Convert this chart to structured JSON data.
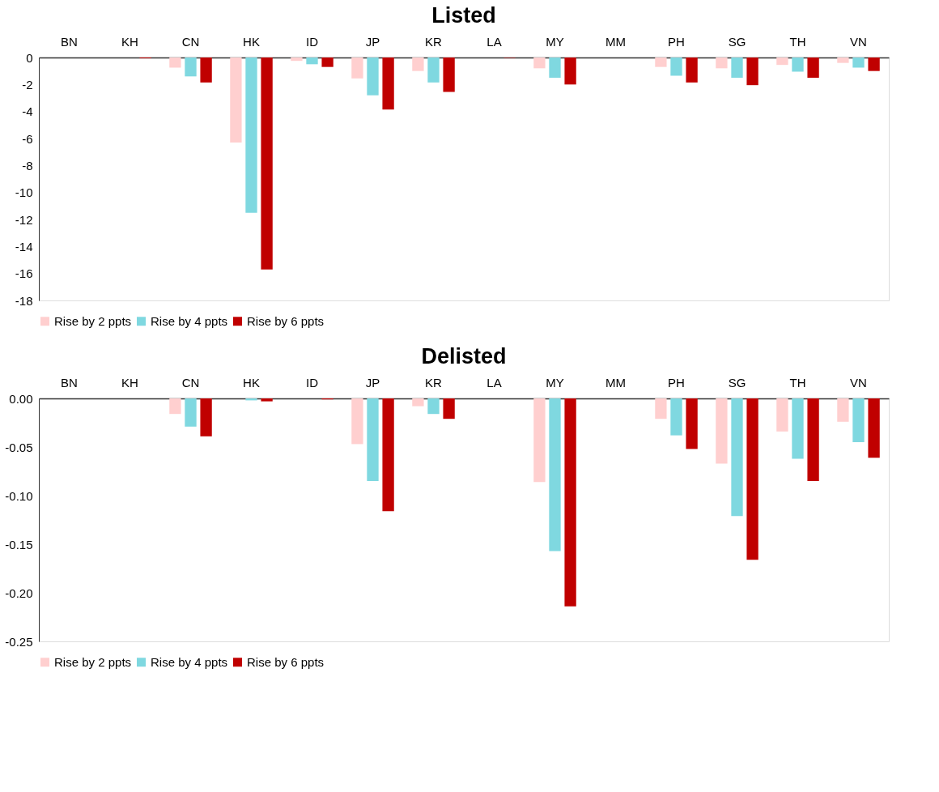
{
  "chart_data": [
    {
      "type": "bar",
      "title": "Listed",
      "categories": [
        "BN",
        "KH",
        "CN",
        "HK",
        "ID",
        "JP",
        "KR",
        "LA",
        "MY",
        "MM",
        "PH",
        "SG",
        "TH",
        "VN"
      ],
      "series": [
        {
          "name": "Rise by 2 ppts",
          "color": "#ffcfcf",
          "values": [
            0,
            0,
            -0.75,
            -6.3,
            -0.25,
            -1.55,
            -1.0,
            0,
            -0.8,
            0,
            -0.7,
            -0.8,
            -0.55,
            -0.4
          ]
        },
        {
          "name": "Rise by 4 ppts",
          "color": "#7fd8e0",
          "values": [
            0,
            null,
            -1.4,
            -11.5,
            -0.5,
            -2.8,
            -1.85,
            null,
            -1.5,
            0,
            -1.35,
            -1.5,
            -1.05,
            -0.75
          ]
        },
        {
          "name": "Rise by 6 ppts",
          "color": "#c00000",
          "values": [
            0,
            -0.06,
            -1.85,
            -15.7,
            -0.7,
            -3.85,
            -2.55,
            -0.03,
            -2.0,
            null,
            -1.85,
            -2.05,
            -1.5,
            -1.0
          ]
        }
      ],
      "ylim": [
        -18,
        0
      ],
      "yticks": [
        -18,
        -16,
        -14,
        -12,
        -10,
        -8,
        -6,
        -4,
        -2,
        0
      ],
      "legend": "bottom"
    },
    {
      "type": "bar",
      "title": "Delisted",
      "categories": [
        "BN",
        "KH",
        "CN",
        "HK",
        "ID",
        "JP",
        "KR",
        "LA",
        "MY",
        "MM",
        "PH",
        "SG",
        "TH",
        "VN"
      ],
      "series": [
        {
          "name": "Rise by 2 ppts",
          "color": "#ffcfcf",
          "values": [
            0,
            0,
            -0.016,
            null,
            0,
            -0.047,
            -0.008,
            0,
            -0.086,
            0,
            -0.021,
            -0.067,
            -0.034,
            -0.024
          ]
        },
        {
          "name": "Rise by 4 ppts",
          "color": "#7fd8e0",
          "values": [
            0,
            0,
            -0.029,
            -0.002,
            0,
            -0.085,
            -0.016,
            0,
            -0.157,
            0,
            -0.038,
            -0.121,
            -0.062,
            -0.045
          ]
        },
        {
          "name": "Rise by 6 ppts",
          "color": "#c00000",
          "values": [
            0,
            0,
            -0.039,
            -0.003,
            -0.001,
            -0.116,
            -0.021,
            0,
            -0.214,
            0,
            -0.052,
            -0.166,
            -0.085,
            -0.061
          ]
        }
      ],
      "ylim": [
        -0.25,
        0
      ],
      "yticks": [
        {
          "value": -0.25,
          "label": "-0.25"
        },
        {
          "value": -0.2,
          "label": "-0.20"
        },
        {
          "value": -0.15,
          "label": "-0.15"
        },
        {
          "value": -0.1,
          "label": "-0.10"
        },
        {
          "value": -0.05,
          "label": "-0.05"
        },
        {
          "value": 0,
          "label": "0.00"
        }
      ],
      "legend": "bottom"
    }
  ]
}
